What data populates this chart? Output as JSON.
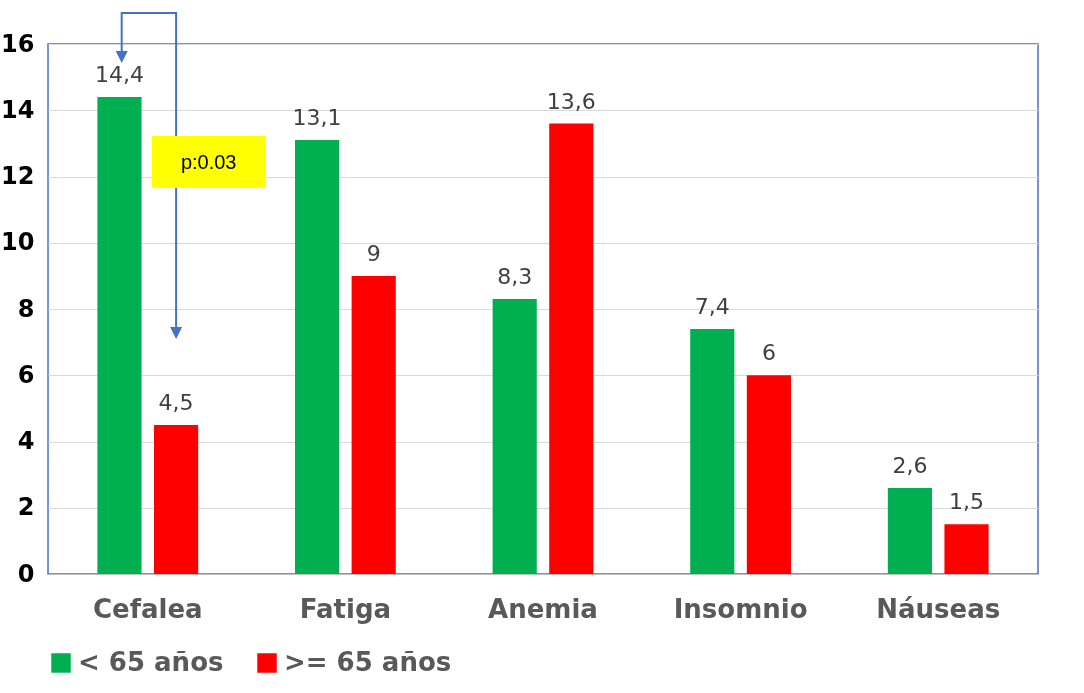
{
  "chart_data": {
    "type": "bar",
    "categories": [
      "Cefalea",
      "Fatiga",
      "Anemia",
      "Insomnio",
      "Náuseas"
    ],
    "series": [
      {
        "name": "< 65 años",
        "color": "#00b050",
        "values": [
          14.4,
          13.1,
          8.3,
          7.4,
          2.6
        ],
        "value_labels": [
          "14,4",
          "13,1",
          "8,3",
          "7,4",
          "2,6"
        ]
      },
      {
        "name": ">= 65 años",
        "color": "#ff0000",
        "values": [
          4.5,
          9,
          13.6,
          6,
          1.5
        ],
        "value_labels": [
          "4,5",
          "9",
          "13,6",
          "6",
          "1,5"
        ]
      }
    ],
    "ylim": [
      0,
      16
    ],
    "yticks": [
      0,
      2,
      4,
      6,
      8,
      10,
      12,
      14,
      16
    ],
    "grid": "y",
    "legend": "bottom",
    "annotations": [
      "p:0.03"
    ]
  }
}
